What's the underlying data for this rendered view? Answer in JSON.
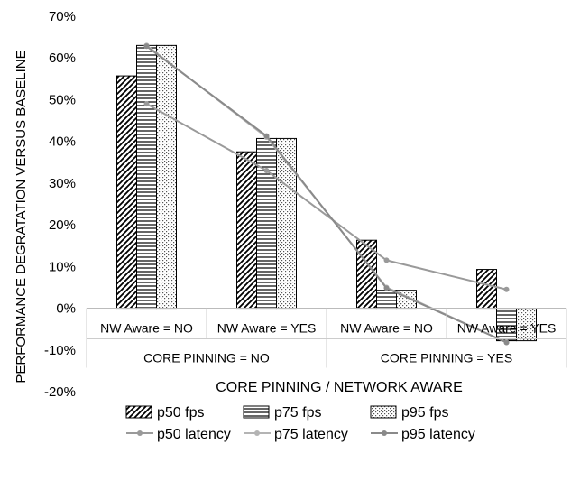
{
  "chart_data": {
    "type": "bar",
    "title": "",
    "xlabel": "CORE PINNING / NETWORK AWARE",
    "ylabel": "PERFORMANCE DEGRATATION VERSUS BASELINE",
    "ylim": [
      -0.2,
      0.7
    ],
    "yticks": [
      -0.2,
      -0.1,
      0,
      0.1,
      0.2,
      0.3,
      0.4,
      0.5,
      0.6,
      0.7
    ],
    "ytick_labels": [
      "-20%",
      "-10%",
      "0%",
      "10%",
      "20%",
      "30%",
      "40%",
      "50%",
      "60%",
      "70%"
    ],
    "grid": false,
    "legend_position": "bottom",
    "categories": [
      "NW Aware = NO",
      "NW Aware = YES",
      "NW Aware = NO",
      "NW Aware = YES"
    ],
    "groups": [
      {
        "label": "CORE PINNING = NO",
        "span": [
          0,
          1
        ]
      },
      {
        "label": "CORE PINNING = YES",
        "span": [
          2,
          3
        ]
      }
    ],
    "series": [
      {
        "name": "p50 fps",
        "kind": "bar",
        "pattern": "diagonal",
        "values": [
          0.557,
          0.375,
          0.163,
          0.093
        ]
      },
      {
        "name": "p75 fps",
        "kind": "bar",
        "pattern": "horizontal",
        "values": [
          0.63,
          0.407,
          0.043,
          -0.078
        ]
      },
      {
        "name": "p95 fps",
        "kind": "bar",
        "pattern": "dotted",
        "values": [
          0.63,
          0.407,
          0.043,
          -0.078
        ]
      },
      {
        "name": "p50 latency",
        "kind": "line",
        "color": "#9a9a9a",
        "values": [
          0.49,
          0.33,
          0.115,
          0.045
        ]
      },
      {
        "name": "p75 latency",
        "kind": "line",
        "color": "#b4b4b4",
        "values": [
          0.63,
          0.41,
          0.05,
          -0.082
        ]
      },
      {
        "name": "p95 latency",
        "kind": "line",
        "color": "#8a8a8a",
        "values": [
          0.628,
          0.413,
          0.048,
          -0.082
        ]
      }
    ]
  }
}
